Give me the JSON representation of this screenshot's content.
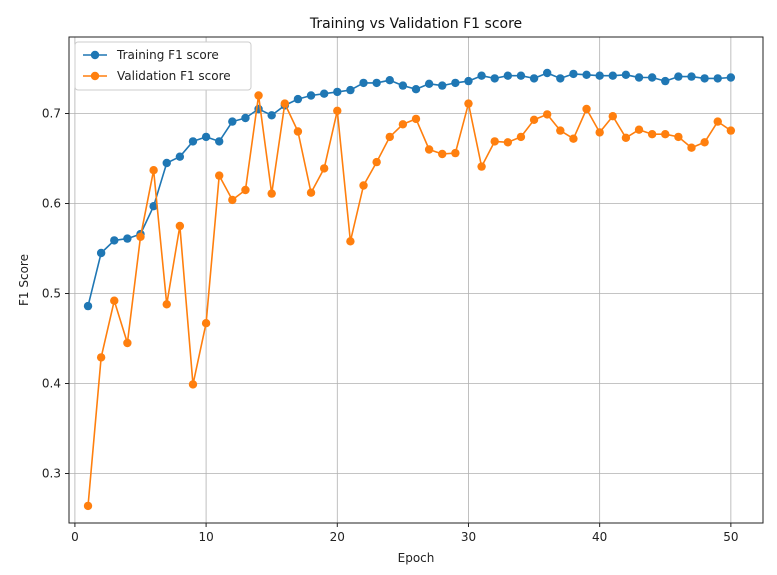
{
  "chart_data": {
    "type": "line",
    "title": "Training vs Validation F1 score",
    "xlabel": "Epoch",
    "ylabel": "F1 Score",
    "xlim": [
      -0.45,
      52.45
    ],
    "ylim": [
      0.245,
      0.785
    ],
    "x_ticks": [
      0,
      10,
      20,
      30,
      40,
      50
    ],
    "y_ticks": [
      0.3,
      0.4,
      0.5,
      0.6,
      0.7
    ],
    "grid": true,
    "legend_position": "top-left",
    "series": [
      {
        "name": "Training F1 score",
        "color": "#1f77b4",
        "x": [
          1,
          2,
          3,
          4,
          5,
          6,
          7,
          8,
          9,
          10,
          11,
          12,
          13,
          14,
          15,
          16,
          17,
          18,
          19,
          20,
          21,
          22,
          23,
          24,
          25,
          26,
          27,
          28,
          29,
          30,
          31,
          32,
          33,
          34,
          35,
          36,
          37,
          38,
          39,
          40,
          41,
          42,
          43,
          44,
          45,
          46,
          47,
          48,
          49,
          50
        ],
        "values": [
          0.486,
          0.545,
          0.559,
          0.561,
          0.566,
          0.597,
          0.645,
          0.652,
          0.669,
          0.674,
          0.669,
          0.691,
          0.695,
          0.705,
          0.698,
          0.709,
          0.716,
          0.72,
          0.722,
          0.724,
          0.726,
          0.734,
          0.734,
          0.737,
          0.731,
          0.727,
          0.733,
          0.731,
          0.734,
          0.736,
          0.742,
          0.739,
          0.742,
          0.742,
          0.739,
          0.745,
          0.739,
          0.744,
          0.743,
          0.742,
          0.742,
          0.743,
          0.74,
          0.74,
          0.736,
          0.741,
          0.741,
          0.739,
          0.739,
          0.74
        ]
      },
      {
        "name": "Validation F1 score",
        "color": "#ff7f0e",
        "x": [
          1,
          2,
          3,
          4,
          5,
          6,
          7,
          8,
          9,
          10,
          11,
          12,
          13,
          14,
          15,
          16,
          17,
          18,
          19,
          20,
          21,
          22,
          23,
          24,
          25,
          26,
          27,
          28,
          29,
          30,
          31,
          32,
          33,
          34,
          35,
          36,
          37,
          38,
          39,
          40,
          41,
          42,
          43,
          44,
          45,
          46,
          47,
          48,
          49,
          50
        ],
        "values": [
          0.264,
          0.429,
          0.492,
          0.445,
          0.563,
          0.637,
          0.488,
          0.575,
          0.399,
          0.467,
          0.631,
          0.604,
          0.615,
          0.72,
          0.611,
          0.711,
          0.68,
          0.612,
          0.639,
          0.703,
          0.558,
          0.62,
          0.646,
          0.674,
          0.688,
          0.694,
          0.66,
          0.655,
          0.656,
          0.711,
          0.641,
          0.669,
          0.668,
          0.674,
          0.693,
          0.699,
          0.681,
          0.672,
          0.705,
          0.679,
          0.697,
          0.673,
          0.682,
          0.677,
          0.677,
          0.674,
          0.662,
          0.668,
          0.691,
          0.681
        ]
      }
    ]
  }
}
